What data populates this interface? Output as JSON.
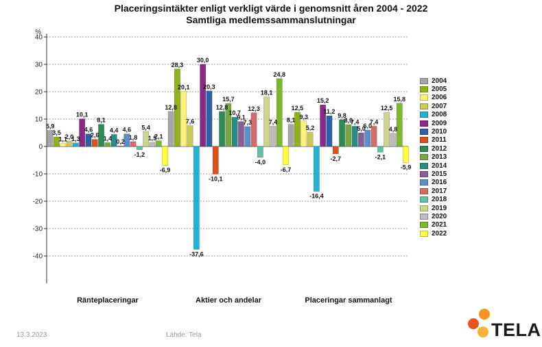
{
  "chart_data": {
    "type": "bar",
    "title": "Placeringsintäkter enligt verkligt värde i genomsnitt åren 2004 - 2022",
    "subtitle": "Samtliga medlemssammanslutningar",
    "ylabel": "%",
    "ylim": [
      -50,
      40
    ],
    "yticks": [
      40,
      30,
      20,
      10,
      0,
      -10,
      -20,
      -30,
      -40
    ],
    "grid": true,
    "legend_position": "right",
    "categories": [
      "Ränteplaceringar",
      "Aktier och andelar",
      "Placeringar sammanlagt"
    ],
    "series": [
      {
        "name": "2004",
        "color": "#a6a6a6",
        "values": [
          5.9,
          12.8,
          8.1
        ]
      },
      {
        "name": "2005",
        "color": "#8db319",
        "values": [
          3.5,
          28.3,
          12.5
        ]
      },
      {
        "name": "2006",
        "color": "#fff176",
        "values": [
          1.1,
          20.1,
          9.3
        ]
      },
      {
        "name": "2007",
        "color": "#c9c95a",
        "values": [
          2.0,
          7.6,
          5.2
        ]
      },
      {
        "name": "2008",
        "color": "#1fb3d6",
        "values": [
          1.3,
          -37.6,
          -16.4
        ]
      },
      {
        "name": "2009",
        "color": "#8b2a86",
        "values": [
          10.1,
          30.0,
          15.2
        ]
      },
      {
        "name": "2010",
        "color": "#2f5fa8",
        "values": [
          4.6,
          20.3,
          11.2
        ]
      },
      {
        "name": "2011",
        "color": "#d9531e",
        "values": [
          2.6,
          -10.1,
          -2.7
        ]
      },
      {
        "name": "2012",
        "color": "#2e8b57",
        "values": [
          8.1,
          12.8,
          9.8
        ]
      },
      {
        "name": "2013",
        "color": "#79a842",
        "values": [
          1.4,
          15.7,
          8.0
        ]
      },
      {
        "name": "2014",
        "color": "#2a8c85",
        "values": [
          4.4,
          10.7,
          7.4
        ]
      },
      {
        "name": "2015",
        "color": "#8a5d94",
        "values": [
          0.2,
          9.1,
          5.0
        ]
      },
      {
        "name": "2016",
        "color": "#5b8fc7",
        "values": [
          4.6,
          7.3,
          6.0
        ]
      },
      {
        "name": "2017",
        "color": "#d46a6a",
        "values": [
          1.8,
          12.3,
          7.4
        ]
      },
      {
        "name": "2018",
        "color": "#5fc2a5",
        "values": [
          -1.2,
          -4.0,
          -2.1
        ]
      },
      {
        "name": "2019",
        "color": "#cfd490",
        "values": [
          5.4,
          18.1,
          12.5
        ]
      },
      {
        "name": "2020",
        "color": "#bcbcbc",
        "values": [
          1.5,
          7.4,
          4.8
        ]
      },
      {
        "name": "2021",
        "color": "#7cb82f",
        "values": [
          2.1,
          24.8,
          15.8
        ]
      },
      {
        "name": "2022",
        "color": "#ffff3d",
        "values": [
          -6.9,
          -6.7,
          -5.9
        ]
      }
    ]
  },
  "footer": {
    "date": "13.3.2023",
    "source": "Lähde: Tela",
    "logo_text": "TELA",
    "logo_colors": [
      "#f7931e",
      "#e8561f",
      "#f9b233"
    ]
  }
}
